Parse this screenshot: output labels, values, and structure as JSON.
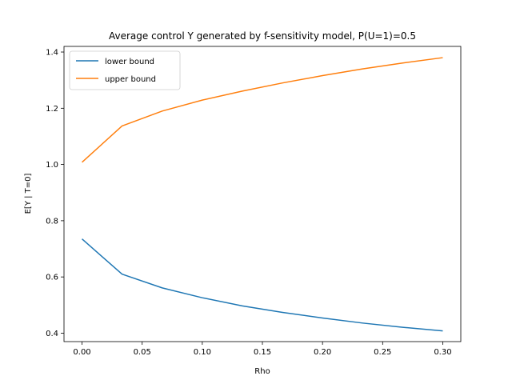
{
  "chart_data": {
    "type": "line",
    "title": "Average control Y generated by f-sensitivity model, P(U=1)=0.5",
    "xlabel": "Rho",
    "ylabel": "E[Y | T=0]",
    "xlim": [
      -0.015,
      0.315
    ],
    "ylim": [
      0.37,
      1.42
    ],
    "xticks": [
      0.0,
      0.05,
      0.1,
      0.15,
      0.2,
      0.25,
      0.3
    ],
    "xtick_labels": [
      "0.00",
      "0.05",
      "0.10",
      "0.15",
      "0.20",
      "0.25",
      "0.30"
    ],
    "yticks": [
      0.4,
      0.6,
      0.8,
      1.0,
      1.2,
      1.4
    ],
    "ytick_labels": [
      "0.4",
      "0.6",
      "0.8",
      "1.0",
      "1.2",
      "1.4"
    ],
    "grid": false,
    "legend_position": "upper-left",
    "x": [
      0.0,
      0.0333,
      0.0667,
      0.1,
      0.1333,
      0.1667,
      0.2,
      0.2333,
      0.2667,
      0.3
    ],
    "series": [
      {
        "name": "lower bound",
        "color": "#1f77b4",
        "values": [
          0.735,
          0.61,
          0.561,
          0.526,
          0.497,
          0.474,
          0.454,
          0.436,
          0.421,
          0.408
        ]
      },
      {
        "name": "upper bound",
        "color": "#ff7f0e",
        "values": [
          1.008,
          1.137,
          1.19,
          1.229,
          1.261,
          1.29,
          1.316,
          1.34,
          1.361,
          1.38
        ]
      }
    ]
  }
}
